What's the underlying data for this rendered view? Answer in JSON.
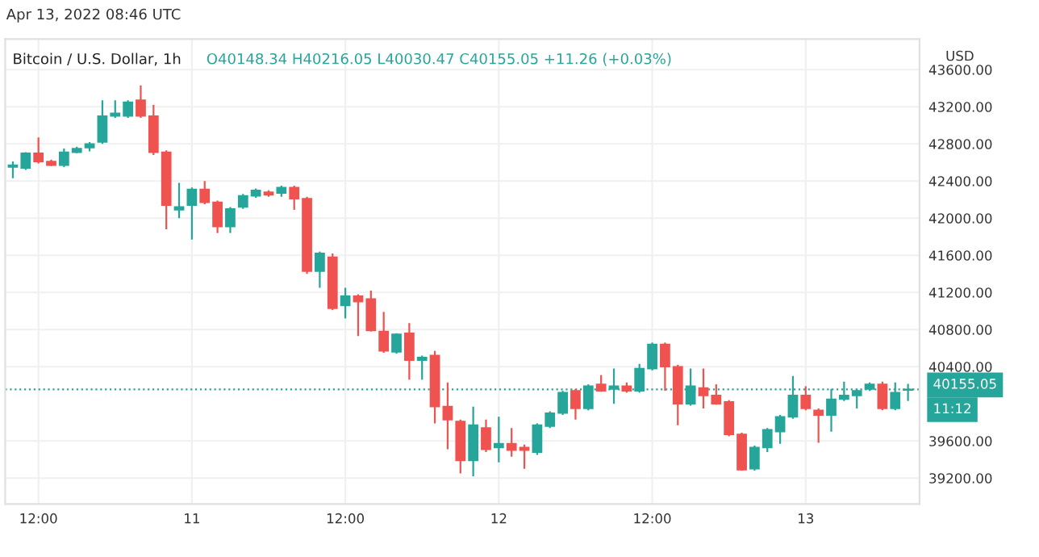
{
  "chart_data": {
    "type": "candlestick",
    "title": "Bitcoin / U.S. Dollar, 1h",
    "subtitle": "Apr 13, 2022 08:46 UTC",
    "ylabel": "USD",
    "annotations": [
      "O40148.34 H40216.05 L40030.47 C40155.05 +11.26 (+0.03%)",
      "11:12"
    ],
    "x": [
      "2022-04-10T10:00",
      "2022-04-10T11:00",
      "2022-04-10T12:00",
      "2022-04-10T13:00",
      "2022-04-10T14:00",
      "2022-04-10T15:00",
      "2022-04-10T16:00",
      "2022-04-10T17:00",
      "2022-04-10T18:00",
      "2022-04-10T19:00",
      "2022-04-10T20:00",
      "2022-04-10T21:00",
      "2022-04-10T22:00",
      "2022-04-10T23:00",
      "2022-04-11T00:00",
      "2022-04-11T01:00",
      "2022-04-11T02:00",
      "2022-04-11T03:00",
      "2022-04-11T04:00",
      "2022-04-11T05:00",
      "2022-04-11T06:00",
      "2022-04-11T07:00",
      "2022-04-11T08:00",
      "2022-04-11T09:00",
      "2022-04-11T10:00",
      "2022-04-11T11:00",
      "2022-04-11T12:00",
      "2022-04-11T13:00",
      "2022-04-11T14:00",
      "2022-04-11T15:00",
      "2022-04-11T16:00",
      "2022-04-11T17:00",
      "2022-04-11T18:00",
      "2022-04-11T19:00",
      "2022-04-11T20:00",
      "2022-04-11T21:00",
      "2022-04-11T22:00",
      "2022-04-11T23:00",
      "2022-04-12T00:00",
      "2022-04-12T01:00",
      "2022-04-12T02:00",
      "2022-04-12T03:00",
      "2022-04-12T04:00",
      "2022-04-12T05:00",
      "2022-04-12T06:00",
      "2022-04-12T07:00",
      "2022-04-12T08:00",
      "2022-04-12T09:00",
      "2022-04-12T10:00",
      "2022-04-12T11:00",
      "2022-04-12T12:00",
      "2022-04-12T13:00",
      "2022-04-12T14:00",
      "2022-04-12T15:00",
      "2022-04-12T16:00",
      "2022-04-12T17:00",
      "2022-04-12T18:00",
      "2022-04-12T19:00",
      "2022-04-12T20:00",
      "2022-04-12T21:00",
      "2022-04-12T22:00",
      "2022-04-12T23:00",
      "2022-04-13T00:00",
      "2022-04-13T01:00",
      "2022-04-13T02:00",
      "2022-04-13T03:00",
      "2022-04-13T04:00",
      "2022-04-13T05:00",
      "2022-04-13T06:00",
      "2022-04-13T07:00",
      "2022-04-13T08:00"
    ],
    "ohlc": [
      [
        42550,
        42610,
        42430,
        42570
      ],
      [
        42540,
        42710,
        42520,
        42700
      ],
      [
        42700,
        42870,
        42590,
        42610
      ],
      [
        42610,
        42630,
        42560,
        42570
      ],
      [
        42570,
        42750,
        42550,
        42710
      ],
      [
        42710,
        42770,
        42700,
        42750
      ],
      [
        42760,
        42820,
        42720,
        42800
      ],
      [
        42820,
        43270,
        42800,
        43100
      ],
      [
        43100,
        43270,
        43080,
        43130
      ],
      [
        43100,
        43270,
        43080,
        43250
      ],
      [
        43270,
        43430,
        43080,
        43100
      ],
      [
        43100,
        43220,
        42680,
        42710
      ],
      [
        42710,
        42730,
        41880,
        42140
      ],
      [
        42090,
        42380,
        42000,
        42120
      ],
      [
        42140,
        42330,
        41770,
        42310
      ],
      [
        42310,
        42400,
        42150,
        42170
      ],
      [
        42170,
        42190,
        41840,
        41910
      ],
      [
        41910,
        42120,
        41840,
        42100
      ],
      [
        42120,
        42260,
        42100,
        42240
      ],
      [
        42240,
        42320,
        42220,
        42300
      ],
      [
        42280,
        42300,
        42230,
        42250
      ],
      [
        42270,
        42350,
        42230,
        42330
      ],
      [
        42330,
        42350,
        42090,
        42210
      ],
      [
        42210,
        42230,
        41400,
        41430
      ],
      [
        41430,
        41640,
        41250,
        41620
      ],
      [
        41580,
        41620,
        41010,
        41030
      ],
      [
        41060,
        41250,
        40920,
        41160
      ],
      [
        41160,
        41180,
        40730,
        41100
      ],
      [
        41130,
        41220,
        40780,
        40790
      ],
      [
        40780,
        40990,
        40550,
        40570
      ],
      [
        40560,
        40760,
        40540,
        40750
      ],
      [
        40760,
        40870,
        40260,
        40470
      ],
      [
        40470,
        40520,
        40260,
        40500
      ],
      [
        40520,
        40570,
        39790,
        39970
      ],
      [
        39970,
        40230,
        39510,
        39830
      ],
      [
        39810,
        39830,
        39250,
        39390
      ],
      [
        39390,
        39970,
        39220,
        39770
      ],
      [
        39740,
        39830,
        39480,
        39510
      ],
      [
        39530,
        39860,
        39370,
        39570
      ],
      [
        39570,
        39740,
        39430,
        39500
      ],
      [
        39530,
        39560,
        39300,
        39500
      ],
      [
        39480,
        39790,
        39450,
        39770
      ],
      [
        39760,
        39920,
        39740,
        39900
      ],
      [
        39900,
        40140,
        39880,
        40120
      ],
      [
        40140,
        40160,
        39830,
        39950
      ],
      [
        39950,
        40210,
        39930,
        40190
      ],
      [
        40210,
        40310,
        40130,
        40140
      ],
      [
        40160,
        40380,
        40000,
        40190
      ],
      [
        40190,
        40230,
        40120,
        40140
      ],
      [
        40140,
        40430,
        40120,
        40380
      ],
      [
        40380,
        40660,
        40360,
        40640
      ],
      [
        40640,
        40660,
        40140,
        40400
      ],
      [
        40400,
        40420,
        39770,
        40000
      ],
      [
        40000,
        40380,
        39980,
        40190
      ],
      [
        40170,
        40380,
        39950,
        40090
      ],
      [
        40090,
        40210,
        39990,
        40000
      ],
      [
        40020,
        40040,
        39650,
        39670
      ],
      [
        39670,
        39690,
        39280,
        39290
      ],
      [
        39300,
        39550,
        39280,
        39530
      ],
      [
        39530,
        39740,
        39480,
        39720
      ],
      [
        39700,
        39880,
        39570,
        39860
      ],
      [
        39860,
        40300,
        39840,
        40090
      ],
      [
        40090,
        40190,
        39930,
        39950
      ],
      [
        39930,
        39950,
        39580,
        39880
      ],
      [
        39880,
        40160,
        39700,
        40050
      ],
      [
        40050,
        40240,
        40030,
        40090
      ],
      [
        40090,
        40160,
        39950,
        40140
      ],
      [
        40160,
        40230,
        40140,
        40210
      ],
      [
        40210,
        40240,
        39930,
        39950
      ],
      [
        39950,
        40230,
        39930,
        40120
      ],
      [
        40148.34,
        40216.05,
        40030.47,
        40155.05
      ]
    ],
    "colors": [
      "#26a69a",
      "#26a69a",
      "#ef5350",
      "#ef5350",
      "#26a69a",
      "#26a69a",
      "#26a69a",
      "#26a69a",
      "#26a69a",
      "#26a69a",
      "#ef5350",
      "#ef5350",
      "#ef5350",
      "#26a69a",
      "#26a69a",
      "#ef5350",
      "#ef5350",
      "#26a69a",
      "#26a69a",
      "#26a69a",
      "#ef5350",
      "#26a69a",
      "#ef5350",
      "#ef5350",
      "#26a69a",
      "#ef5350",
      "#26a69a",
      "#ef5350",
      "#ef5350",
      "#ef5350",
      "#26a69a",
      "#ef5350",
      "#26a69a",
      "#ef5350",
      "#ef5350",
      "#ef5350",
      "#26a69a",
      "#ef5350",
      "#26a69a",
      "#ef5350",
      "#ef5350",
      "#26a69a",
      "#26a69a",
      "#26a69a",
      "#ef5350",
      "#26a69a",
      "#ef5350",
      "#26a69a",
      "#ef5350",
      "#26a69a",
      "#26a69a",
      "#ef5350",
      "#ef5350",
      "#26a69a",
      "#ef5350",
      "#ef5350",
      "#ef5350",
      "#ef5350",
      "#26a69a",
      "#26a69a",
      "#26a69a",
      "#26a69a",
      "#ef5350",
      "#ef5350",
      "#26a69a",
      "#26a69a",
      "#26a69a",
      "#26a69a",
      "#ef5350",
      "#26a69a",
      "#26a69a"
    ],
    "xlim": [
      "2022-04-10T09:24",
      "2022-04-13T08:54"
    ],
    "xticks": [
      {
        "value": "2022-04-10T12:00",
        "label": "12:00"
      },
      {
        "value": "2022-04-11",
        "label": "11"
      },
      {
        "value": "2022-04-11T12:00",
        "label": "12:00"
      },
      {
        "value": "2022-04-12",
        "label": "12"
      },
      {
        "value": "2022-04-12T12:00",
        "label": "12:00"
      },
      {
        "value": "2022-04-13",
        "label": "13"
      }
    ],
    "ylim": [
      38920,
      43930
    ],
    "yticks": [
      {
        "value": 39200,
        "label": "39200.00"
      },
      {
        "value": 39600,
        "label": "39600.00"
      },
      {
        "value": 40400,
        "label": "40400.00"
      },
      {
        "value": 40800,
        "label": "40800.00"
      },
      {
        "value": 41200,
        "label": "41200.00"
      },
      {
        "value": 41600,
        "label": "41600.00"
      },
      {
        "value": 42000,
        "label": "42000.00"
      },
      {
        "value": 42400,
        "label": "42400.00"
      },
      {
        "value": 42800,
        "label": "42800.00"
      },
      {
        "value": 43200,
        "label": "43200.00"
      },
      {
        "value": 43600,
        "label": "43600.00"
      }
    ],
    "ref_lines": [
      {
        "axis": "y",
        "value": 40155.05,
        "label": "40155.05",
        "color": "#26a69a",
        "line_style": "dotted"
      }
    ],
    "grid": true
  }
}
